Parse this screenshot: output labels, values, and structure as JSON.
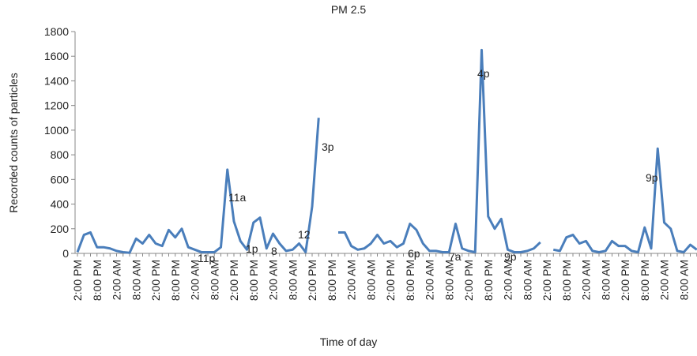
{
  "chart_data": {
    "type": "line",
    "title": "PM 2.5",
    "x_label": "Time of day",
    "y_label": "Recorded counts of particles",
    "categories": [
      "2:00 PM",
      null,
      null,
      "8:00 PM",
      null,
      null,
      "2:00 AM",
      null,
      null,
      "8:00 AM",
      null,
      null,
      "2:00 PM",
      null,
      null,
      "8:00 PM",
      null,
      null,
      "2:00 AM",
      null,
      null,
      "8:00 AM",
      null,
      null,
      "2:00 PM",
      null,
      null,
      "8:00 PM",
      null,
      null,
      "2:00 AM",
      null,
      null,
      "8:00 AM",
      null,
      null,
      "2:00 PM",
      null,
      null,
      "8:00 PM",
      null,
      null,
      "2:00 AM",
      null,
      null,
      "8:00 AM",
      null,
      null,
      "2:00 PM",
      null,
      null,
      "8:00 PM",
      null,
      null,
      "2:00 AM",
      null,
      null,
      "8:00 AM",
      null,
      null,
      "2:00 PM",
      null,
      null,
      "8:00 PM",
      null,
      null,
      "2:00 AM",
      null,
      null,
      "8:00 AM",
      null,
      null,
      "2:00 PM",
      null,
      null,
      "8:00 PM",
      null,
      null,
      "2:00 AM",
      null,
      null,
      "8:00 AM",
      null,
      null,
      "2:00 PM",
      null,
      null,
      "8:00 PM",
      null,
      null,
      "2:00 AM",
      null,
      null,
      "8:00 AM",
      null,
      null
    ],
    "series": [
      {
        "name": "PM 2.5",
        "color": "#4a7ebb",
        "values": [
          10,
          150,
          170,
          50,
          50,
          40,
          20,
          10,
          5,
          120,
          80,
          150,
          80,
          60,
          190,
          130,
          200,
          50,
          30,
          10,
          10,
          10,
          50,
          680,
          260,
          100,
          30,
          250,
          290,
          40,
          160,
          80,
          20,
          30,
          80,
          10,
          380,
          1100,
          null,
          null,
          170,
          170,
          60,
          30,
          40,
          80,
          150,
          80,
          100,
          50,
          80,
          240,
          190,
          80,
          20,
          20,
          10,
          10,
          240,
          40,
          20,
          10,
          1650,
          300,
          200,
          280,
          30,
          10,
          10,
          20,
          40,
          90,
          null,
          30,
          20,
          130,
          150,
          80,
          100,
          20,
          10,
          20,
          100,
          60,
          60,
          20,
          10,
          210,
          40,
          850,
          250,
          200,
          20,
          10,
          70,
          30
        ]
      }
    ],
    "ylim": [
      0,
      1800
    ],
    "yticks": [
      0,
      200,
      400,
      600,
      800,
      1000,
      1200,
      1400,
      1600,
      1800
    ],
    "grid": false,
    "annotations": [
      "11p",
      "11a",
      "1p",
      "8",
      "12",
      "3p",
      "6p",
      "7a",
      "4p",
      "9p",
      "9p"
    ]
  }
}
